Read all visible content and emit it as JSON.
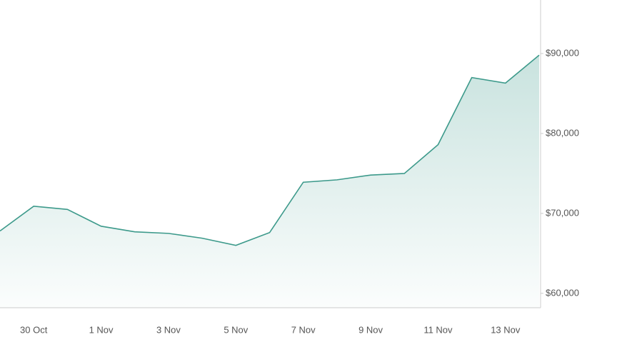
{
  "chart_data": {
    "type": "area",
    "categories": [
      null,
      "30 Oct",
      null,
      "1 Nov",
      null,
      "3 Nov",
      null,
      "5 Nov",
      null,
      "7 Nov",
      null,
      "9 Nov",
      null,
      "11 Nov",
      null,
      "13 Nov",
      null
    ],
    "series": [
      {
        "color": "#3d9a8b",
        "values": [
          67800,
          70900,
          70500,
          68400,
          67700,
          67500,
          66900,
          66000,
          67600,
          73900,
          74200,
          74800,
          75000,
          78600,
          87000,
          86300,
          89800
        ]
      }
    ],
    "ylim": [
      58200,
      96700
    ],
    "yticks": [
      {
        "value": 60000,
        "label": "$60,000"
      },
      {
        "value": 70000,
        "label": "$70,000"
      },
      {
        "value": 80000,
        "label": "$80,000"
      },
      {
        "value": 90000,
        "label": "$90,000"
      }
    ]
  }
}
